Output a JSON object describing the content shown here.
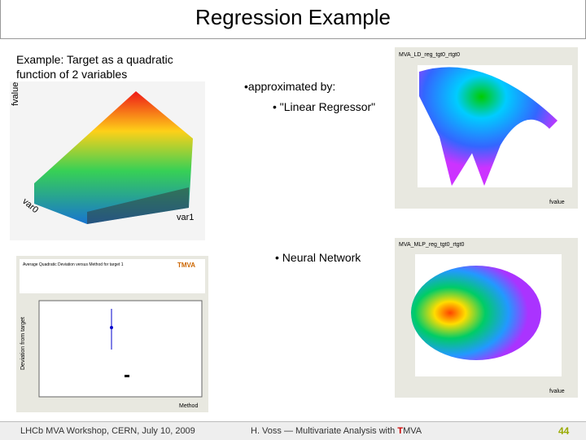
{
  "header": {
    "title": "Regression Example"
  },
  "left": {
    "intro": "Example:  Target as a quadratic function of 2 variables",
    "plot3d": {
      "z_label": "fvalue",
      "x_label": "var1",
      "y_label": "var0"
    },
    "deviation_plot": {
      "title": "Average Quadratic Deviation versus Method for target 1",
      "logo": "TMVA",
      "y_label": "Deviation from target",
      "x_label": "Method"
    }
  },
  "right": {
    "bullet1": "•approximated by:",
    "bullet1_sub": "• \"Linear Regressor\"",
    "bullet2": "•  Neural Network",
    "plot_ld": {
      "title": "MVA_LD_reg_tgt0_rtgt0",
      "x_label": "fvalue"
    },
    "plot_mlp": {
      "title": "MVA_MLP_reg_tgt0_rtgt0",
      "x_label": "fvalue"
    }
  },
  "footer": {
    "left": "LHCb MVA Workshop, CERN, July 10, 2009",
    "center_prefix": "H. Voss ― Multivariate Analysis with ",
    "center_highlight": "T",
    "center_suffix": "MVA",
    "page": "44"
  }
}
